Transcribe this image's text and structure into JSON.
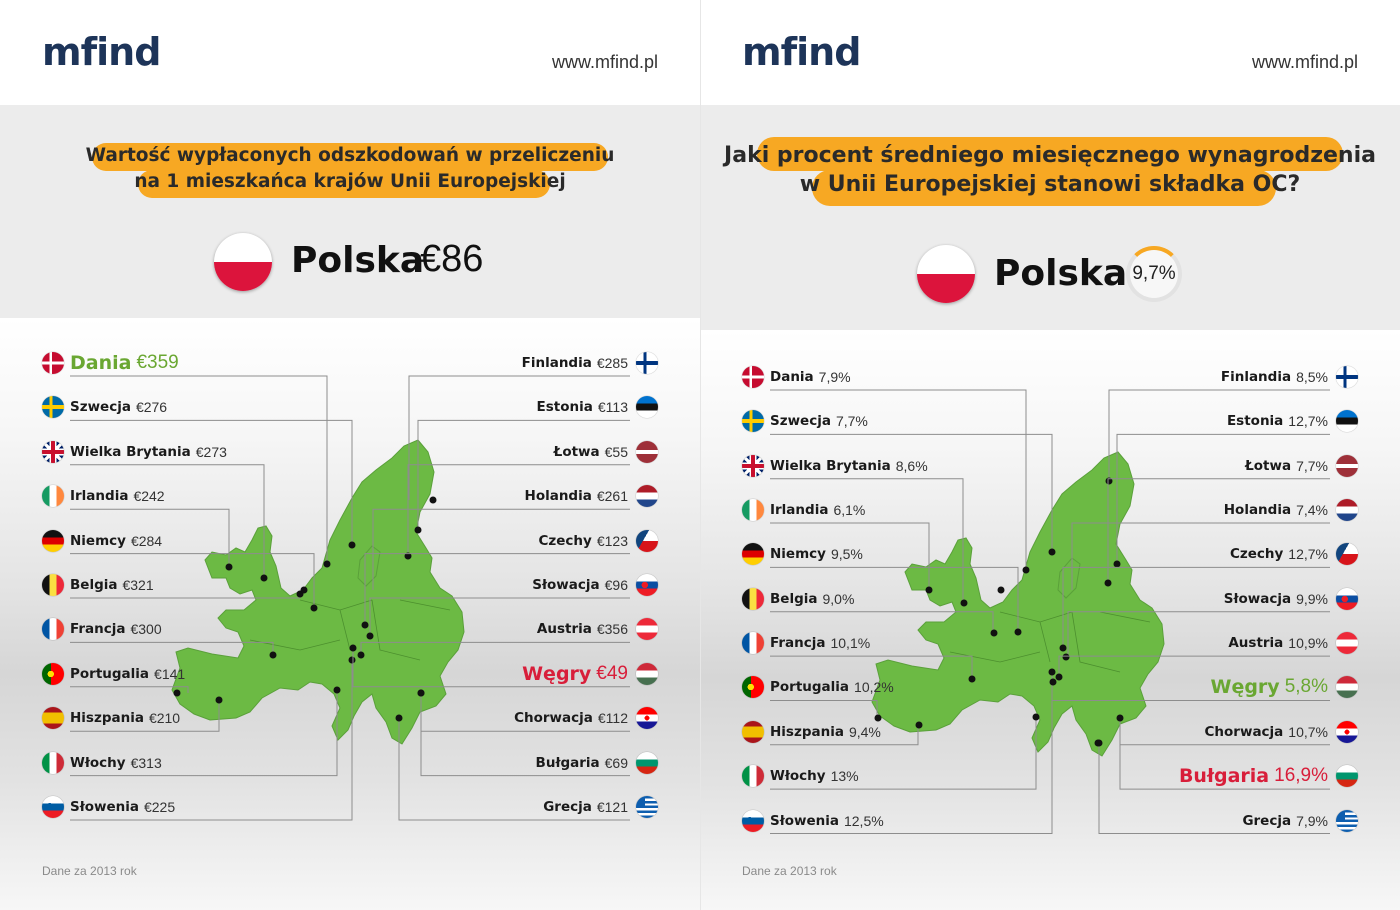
{
  "panels": [
    {
      "logo": "mfind",
      "url": "www.mfind.pl",
      "title_line1": "Wartość wypłaconych odszkodowań w przeliczeniu",
      "title_line2": "na 1 mieszkańca krajów Unii Europejskiej",
      "highlight": {
        "country": "Polska",
        "value": "€86"
      },
      "left_list": [
        {
          "name": "Dania",
          "value": "€359",
          "flag": "denmark",
          "style": "green"
        },
        {
          "name": "Szwecja",
          "value": "€276",
          "flag": "sweden"
        },
        {
          "name": "Wielka Brytania",
          "value": "€273",
          "flag": "uk"
        },
        {
          "name": "Irlandia",
          "value": "€242",
          "flag": "ireland"
        },
        {
          "name": "Niemcy",
          "value": "€284",
          "flag": "germany"
        },
        {
          "name": "Belgia",
          "value": "€321",
          "flag": "belgium"
        },
        {
          "name": "Francja",
          "value": "€300",
          "flag": "france"
        },
        {
          "name": "Portugalia",
          "value": "€141",
          "flag": "portugal"
        },
        {
          "name": "Hiszpania",
          "value": "€210",
          "flag": "spain"
        },
        {
          "name": "Włochy",
          "value": "€313",
          "flag": "italy"
        },
        {
          "name": "Słowenia",
          "value": "€225",
          "flag": "slovenia"
        }
      ],
      "right_list": [
        {
          "name": "Finlandia",
          "value": "€285",
          "flag": "finland"
        },
        {
          "name": "Estonia",
          "value": "€113",
          "flag": "estonia"
        },
        {
          "name": "Łotwa",
          "value": "€55",
          "flag": "latvia"
        },
        {
          "name": "Holandia",
          "value": "€261",
          "flag": "netherlands"
        },
        {
          "name": "Czechy",
          "value": "€123",
          "flag": "czech"
        },
        {
          "name": "Słowacja",
          "value": "€96",
          "flag": "slovakia"
        },
        {
          "name": "Austria",
          "value": "€356",
          "flag": "austria"
        },
        {
          "name": "Węgry",
          "value": "€49",
          "flag": "hungary",
          "style": "red"
        },
        {
          "name": "Chorwacja",
          "value": "€112",
          "flag": "croatia"
        },
        {
          "name": "Bułgaria",
          "value": "€69",
          "flag": "bulgaria"
        },
        {
          "name": "Grecja",
          "value": "€121",
          "flag": "greece"
        }
      ],
      "note": "Dane za 2013 rok"
    },
    {
      "logo": "mfind",
      "url": "www.mfind.pl",
      "title_line1": "Jaki procent średniego miesięcznego wynagrodzenia",
      "title_line2": "w Unii Europejskiej stanowi składka OC?",
      "highlight": {
        "country": "Polska",
        "value": "9,7%"
      },
      "left_list": [
        {
          "name": "Dania",
          "value": "7,9%",
          "flag": "denmark"
        },
        {
          "name": "Szwecja",
          "value": "7,7%",
          "flag": "sweden"
        },
        {
          "name": "Wielka Brytania",
          "value": "8,6%",
          "flag": "uk"
        },
        {
          "name": "Irlandia",
          "value": "6,1%",
          "flag": "ireland"
        },
        {
          "name": "Niemcy",
          "value": "9,5%",
          "flag": "germany"
        },
        {
          "name": "Belgia",
          "value": "9,0%",
          "flag": "belgium"
        },
        {
          "name": "Francja",
          "value": "10,1%",
          "flag": "france"
        },
        {
          "name": "Portugalia",
          "value": "10,2%",
          "flag": "portugal"
        },
        {
          "name": "Hiszpania",
          "value": "9,4%",
          "flag": "spain"
        },
        {
          "name": "Włochy",
          "value": "13%",
          "flag": "italy"
        },
        {
          "name": "Słowenia",
          "value": "12,5%",
          "flag": "slovenia"
        }
      ],
      "right_list": [
        {
          "name": "Finlandia",
          "value": "8,5%",
          "flag": "finland"
        },
        {
          "name": "Estonia",
          "value": "12,7%",
          "flag": "estonia"
        },
        {
          "name": "Łotwa",
          "value": "7,7%",
          "flag": "latvia"
        },
        {
          "name": "Holandia",
          "value": "7,4%",
          "flag": "netherlands"
        },
        {
          "name": "Czechy",
          "value": "12,7%",
          "flag": "czech"
        },
        {
          "name": "Słowacja",
          "value": "9,9%",
          "flag": "slovakia"
        },
        {
          "name": "Austria",
          "value": "10,9%",
          "flag": "austria"
        },
        {
          "name": "Węgry",
          "value": "5,8%",
          "flag": "hungary",
          "style": "green"
        },
        {
          "name": "Chorwacja",
          "value": "10,7%",
          "flag": "croatia"
        },
        {
          "name": "Bułgaria",
          "value": "16,9%",
          "flag": "bulgaria",
          "style": "red"
        },
        {
          "name": "Grecja",
          "value": "7,9%",
          "flag": "greece"
        }
      ],
      "note": "Dane za 2013 rok"
    }
  ],
  "colors": {
    "brand_navy": "#1d3459",
    "pill_orange": "#f7a823",
    "map_green": "#6cba44",
    "highlight_green": "#6aa732",
    "highlight_red": "#d81e3a",
    "poland_red": "#dc143c"
  },
  "icons": [
    "map-of-europe-icon",
    "country-flag-icon"
  ]
}
